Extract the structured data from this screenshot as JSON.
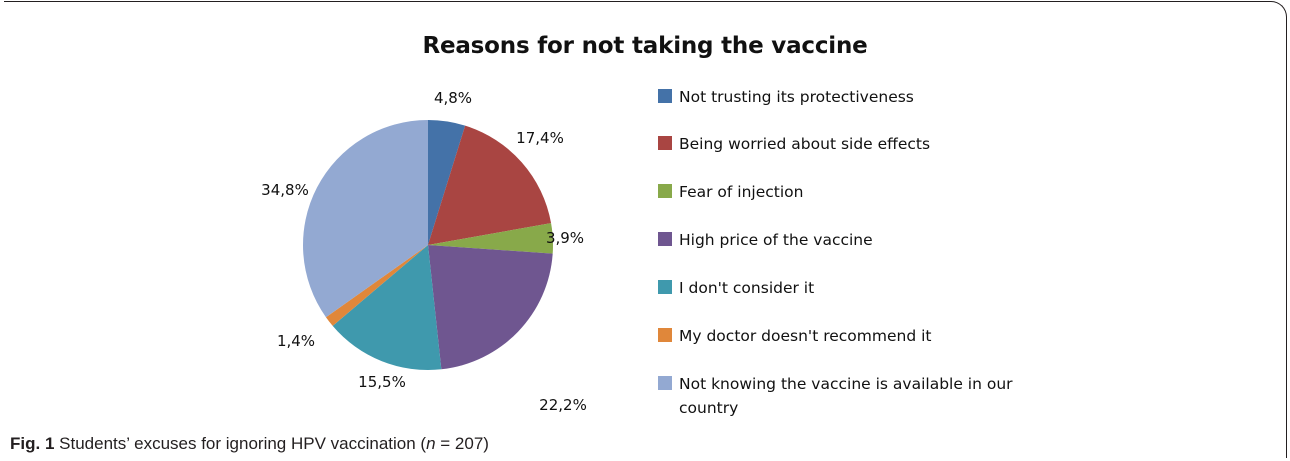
{
  "chart_data": {
    "type": "pie",
    "title": "Reasons for not taking the vaccine",
    "categories": [
      "Not trusting its protectiveness",
      "Being worried about side effects",
      "Fear of injection",
      "High price of the vaccine",
      "I don't consider it",
      "My doctor doesn't recommend it",
      "Not knowing the vaccine is available in our country"
    ],
    "values": [
      4.8,
      17.4,
      3.9,
      22.2,
      15.5,
      1.4,
      34.8
    ],
    "labels": [
      "4,8%",
      "17,4%",
      "3,9%",
      "22,2%",
      "15,5%",
      "1,4%",
      "34,8%"
    ],
    "colors": [
      "#4472a8",
      "#a94542",
      "#88a94a",
      "#6f5690",
      "#3f99ad",
      "#e0873a",
      "#93a9d2"
    ],
    "legend_position": "right"
  },
  "caption": {
    "figure_number": "Fig. 1",
    "text_before": "Students’ excuses for ignoring HPV vaccination (",
    "n_symbol": "n",
    "text_after": " = 207)"
  }
}
